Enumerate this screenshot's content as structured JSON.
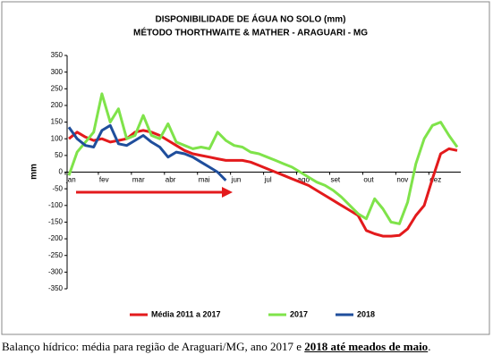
{
  "chart_data": {
    "type": "line",
    "title": "DISPONIBILIDADE DE ÁGUA NO SOLO (mm)",
    "subtitle": "MÉTODO THORTHWAITE & MATHER - ARAGUARI - MG",
    "y_label": "mm",
    "categories": [
      "jan",
      null,
      null,
      null,
      "fev",
      null,
      null,
      null,
      "mar",
      null,
      null,
      null,
      "abr",
      null,
      null,
      null,
      "mai",
      null,
      null,
      null,
      "jun",
      null,
      null,
      null,
      "jul",
      null,
      null,
      null,
      "ago",
      null,
      null,
      null,
      "set",
      null,
      null,
      null,
      "out",
      null,
      null,
      null,
      "nov",
      null,
      null,
      null,
      "dez",
      null,
      null,
      null
    ],
    "series": [
      {
        "name": "Média 2011 a 2017",
        "color": "#e31a1c",
        "values": [
          100,
          120,
          105,
          95,
          100,
          90,
          95,
          100,
          120,
          125,
          120,
          110,
          95,
          80,
          65,
          55,
          50,
          45,
          40,
          35,
          35,
          35,
          30,
          20,
          10,
          0,
          -10,
          -20,
          -30,
          -40,
          -55,
          -70,
          -85,
          -100,
          -115,
          -130,
          -175,
          -185,
          -192,
          -192,
          -190,
          -170,
          -130,
          -100,
          -20,
          55,
          70,
          65
        ]
      },
      {
        "name": "2017",
        "color": "#7fe34a",
        "values": [
          -10,
          60,
          90,
          120,
          235,
          150,
          190,
          100,
          110,
          170,
          110,
          100,
          145,
          90,
          80,
          70,
          75,
          70,
          120,
          95,
          80,
          75,
          60,
          55,
          45,
          35,
          25,
          15,
          0,
          -15,
          -30,
          -40,
          -55,
          -75,
          -100,
          -125,
          -140,
          -80,
          -110,
          -150,
          -155,
          -90,
          25,
          100,
          140,
          150,
          110,
          75
        ]
      },
      {
        "name": "2018",
        "color": "#1f4e9c",
        "values": [
          135,
          100,
          80,
          75,
          125,
          140,
          85,
          80,
          95,
          110,
          90,
          75,
          45,
          60,
          55,
          45,
          30,
          15,
          0,
          -25,
          null,
          null,
          null,
          null,
          null,
          null,
          null,
          null,
          null,
          null,
          null,
          null,
          null,
          null,
          null,
          null,
          null,
          null,
          null,
          null,
          null,
          null,
          null,
          null,
          null,
          null,
          null,
          null
        ]
      }
    ],
    "ylim": [
      -350,
      350
    ],
    "yticks": [
      -350,
      -300,
      -250,
      -200,
      -150,
      -100,
      -50,
      0,
      50,
      100,
      150,
      200,
      250,
      300,
      350
    ],
    "grid": false,
    "legend": "bottom"
  },
  "caption": {
    "text": "Balanço hídrico: média para região de Araguari/MG, ano 2017 e ",
    "emphasis": "2018 até meados de maio",
    "end": "."
  }
}
